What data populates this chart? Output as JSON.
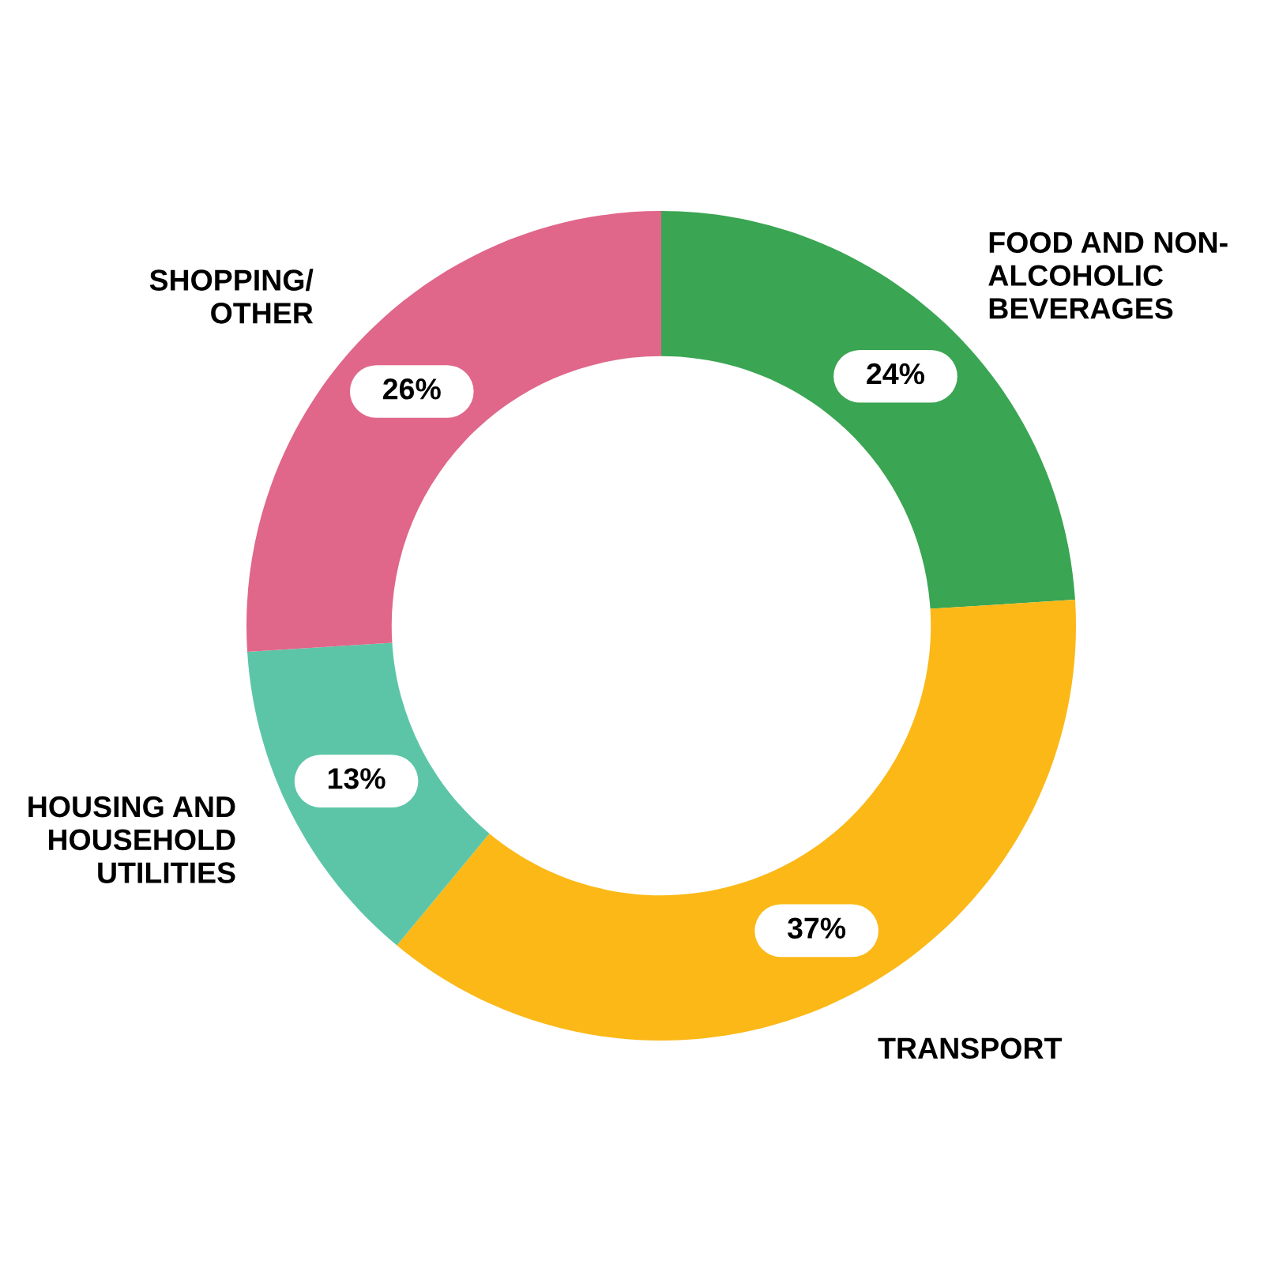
{
  "chart_data": {
    "type": "donut",
    "categories": [
      "FOOD AND NON-\nALCOHOLIC\nBEVERAGES",
      "TRANSPORT",
      "HOUSING AND\nHOUSEHOLD\nUTILITIES",
      "SHOPPING/\nOTHER"
    ],
    "values": [
      24,
      37,
      13,
      26
    ],
    "colors": [
      "#3aa552",
      "#fbb817",
      "#5cc5a8",
      "#e0668a"
    ],
    "value_labels": [
      "24%",
      "37%",
      "13%",
      "26%"
    ]
  }
}
